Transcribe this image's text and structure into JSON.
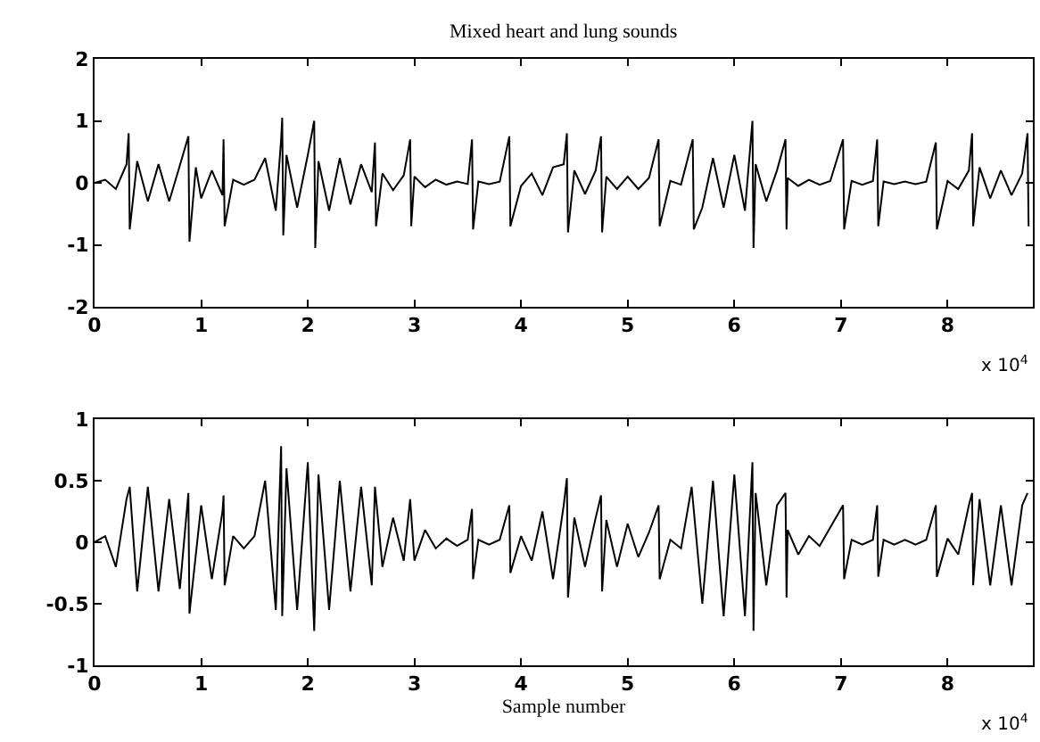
{
  "chart_data": [
    {
      "type": "line",
      "title": "Mixed heart and lung sounds",
      "color": "#000000",
      "x": [
        0,
        0.1,
        0.2,
        0.3,
        0.32,
        0.33,
        0.4,
        0.5,
        0.6,
        0.7,
        0.8,
        0.88,
        0.89,
        0.95,
        1.0,
        1.1,
        1.2,
        1.21,
        1.22,
        1.3,
        1.4,
        1.5,
        1.6,
        1.7,
        1.75,
        1.76,
        1.77,
        1.8,
        1.9,
        2.0,
        2.06,
        2.07,
        2.1,
        2.2,
        2.3,
        2.4,
        2.5,
        2.6,
        2.63,
        2.64,
        2.7,
        2.8,
        2.9,
        2.96,
        2.97,
        3.0,
        3.1,
        3.2,
        3.3,
        3.4,
        3.5,
        3.54,
        3.55,
        3.6,
        3.7,
        3.8,
        3.89,
        3.9,
        4.0,
        4.1,
        4.2,
        4.3,
        4.4,
        4.43,
        4.44,
        4.5,
        4.6,
        4.7,
        4.75,
        4.76,
        4.8,
        4.9,
        5.0,
        5.1,
        5.2,
        5.29,
        5.3,
        5.4,
        5.5,
        5.61,
        5.62,
        5.7,
        5.8,
        5.9,
        6.0,
        6.1,
        6.17,
        6.18,
        6.2,
        6.3,
        6.4,
        6.48,
        6.49,
        6.5,
        6.6,
        6.7,
        6.8,
        6.9,
        7.02,
        7.03,
        7.1,
        7.2,
        7.3,
        7.34,
        7.35,
        7.4,
        7.5,
        7.6,
        7.7,
        7.8,
        7.89,
        7.9,
        8.0,
        8.1,
        8.2,
        8.23,
        8.24,
        8.3,
        8.4,
        8.5,
        8.6,
        8.7,
        8.75,
        8.76
      ],
      "values": [
        0,
        0.05,
        -0.1,
        0.3,
        0.8,
        -0.75,
        0.35,
        -0.3,
        0.3,
        -0.3,
        0.28,
        0.75,
        -0.95,
        0.25,
        -0.25,
        0.2,
        -0.2,
        0.7,
        -0.7,
        0.05,
        -0.03,
        0.05,
        0.4,
        -0.45,
        0.7,
        1.05,
        -0.85,
        0.45,
        -0.4,
        0.45,
        1.0,
        -1.05,
        0.35,
        -0.45,
        0.4,
        -0.35,
        0.3,
        -0.15,
        0.65,
        -0.7,
        0.15,
        -0.12,
        0.12,
        0.7,
        -0.7,
        0.1,
        -0.07,
        0.05,
        -0.03,
        0.02,
        -0.02,
        0.7,
        -0.75,
        0.02,
        -0.02,
        0.02,
        0.75,
        -0.7,
        -0.05,
        0.15,
        -0.2,
        0.25,
        0.3,
        0.8,
        -0.8,
        0.2,
        -0.18,
        0.2,
        0.75,
        -0.8,
        0.1,
        -0.1,
        0.1,
        -0.1,
        0.08,
        0.7,
        -0.7,
        0.03,
        -0.03,
        0.7,
        -0.75,
        -0.4,
        0.4,
        -0.4,
        0.45,
        -0.45,
        1.0,
        -1.05,
        0.3,
        -0.3,
        0.2,
        0.7,
        -0.75,
        0.08,
        -0.05,
        0.05,
        -0.03,
        0.03,
        0.7,
        -0.75,
        0.03,
        -0.03,
        0.03,
        0.7,
        -0.7,
        0.02,
        -0.02,
        0.02,
        -0.02,
        0.02,
        0.65,
        -0.75,
        0.03,
        -0.1,
        0.2,
        0.8,
        -0.7,
        0.25,
        -0.25,
        0.2,
        -0.2,
        0.15,
        0.8,
        -0.7
      ],
      "xlim": [
        0,
        8.8
      ],
      "xticks": [
        0,
        1,
        2,
        3,
        4,
        5,
        6,
        7,
        8
      ],
      "ylim": [
        -2,
        2
      ],
      "yticks": [
        -2,
        -1,
        0,
        1,
        2
      ],
      "annotations": [
        "x 10$^{4}$"
      ]
    },
    {
      "type": "line",
      "xlabel": "Sample number",
      "color": "#000000",
      "x": [
        0,
        0.1,
        0.2,
        0.3,
        0.33,
        0.4,
        0.5,
        0.6,
        0.7,
        0.8,
        0.88,
        0.89,
        1.0,
        1.1,
        1.2,
        1.21,
        1.22,
        1.3,
        1.4,
        1.5,
        1.6,
        1.7,
        1.75,
        1.76,
        1.8,
        1.9,
        2.0,
        2.06,
        2.1,
        2.2,
        2.3,
        2.4,
        2.5,
        2.6,
        2.63,
        2.7,
        2.8,
        2.9,
        2.96,
        3.0,
        3.1,
        3.2,
        3.3,
        3.4,
        3.5,
        3.54,
        3.55,
        3.6,
        3.7,
        3.8,
        3.89,
        3.9,
        4.0,
        4.1,
        4.2,
        4.3,
        4.4,
        4.43,
        4.44,
        4.5,
        4.6,
        4.7,
        4.75,
        4.76,
        4.8,
        4.9,
        5.0,
        5.1,
        5.2,
        5.29,
        5.3,
        5.4,
        5.5,
        5.6,
        5.7,
        5.8,
        5.9,
        6.0,
        6.1,
        6.17,
        6.18,
        6.2,
        6.3,
        6.4,
        6.48,
        6.49,
        6.5,
        6.6,
        6.7,
        6.8,
        7.02,
        7.03,
        7.1,
        7.2,
        7.3,
        7.34,
        7.35,
        7.4,
        7.5,
        7.6,
        7.7,
        7.8,
        7.89,
        7.9,
        8.0,
        8.1,
        8.2,
        8.23,
        8.24,
        8.3,
        8.4,
        8.5,
        8.6,
        8.7,
        8.75
      ],
      "values": [
        0,
        0.05,
        -0.2,
        0.35,
        0.45,
        -0.4,
        0.45,
        -0.4,
        0.35,
        -0.38,
        0.4,
        -0.58,
        0.3,
        -0.3,
        0.25,
        0.38,
        -0.35,
        0.05,
        -0.05,
        0.05,
        0.5,
        -0.55,
        0.78,
        -0.6,
        0.6,
        -0.55,
        0.65,
        -0.72,
        0.55,
        -0.55,
        0.5,
        -0.4,
        0.45,
        -0.35,
        0.45,
        -0.2,
        0.2,
        -0.15,
        0.35,
        -0.15,
        0.1,
        -0.05,
        0.03,
        -0.03,
        0.02,
        0.27,
        -0.3,
        0.02,
        -0.02,
        0.02,
        0.3,
        -0.25,
        0.05,
        -0.15,
        0.25,
        -0.3,
        0.3,
        0.52,
        -0.45,
        0.2,
        -0.2,
        0.2,
        0.38,
        -0.4,
        0.18,
        -0.2,
        0.15,
        -0.12,
        0.08,
        0.3,
        -0.3,
        0.02,
        -0.05,
        0.45,
        -0.5,
        0.5,
        -0.6,
        0.55,
        -0.6,
        0.65,
        -0.72,
        0.4,
        -0.35,
        0.3,
        0.4,
        -0.45,
        0.1,
        -0.1,
        0.05,
        -0.03,
        0.3,
        -0.3,
        0.02,
        -0.02,
        0.02,
        0.3,
        -0.28,
        0.02,
        -0.02,
        0.02,
        -0.02,
        0.02,
        0.3,
        -0.28,
        0.03,
        -0.1,
        0.3,
        0.4,
        -0.35,
        0.35,
        -0.35,
        0.3,
        -0.35,
        0.3,
        0.4
      ],
      "xlim": [
        0,
        8.8
      ],
      "xticks": [
        0,
        1,
        2,
        3,
        4,
        5,
        6,
        7,
        8
      ],
      "ylim": [
        -1,
        1
      ],
      "yticks": [
        -1,
        -0.5,
        0,
        0.5,
        1
      ],
      "annotations": [
        "x 10$^{4}$"
      ]
    }
  ]
}
